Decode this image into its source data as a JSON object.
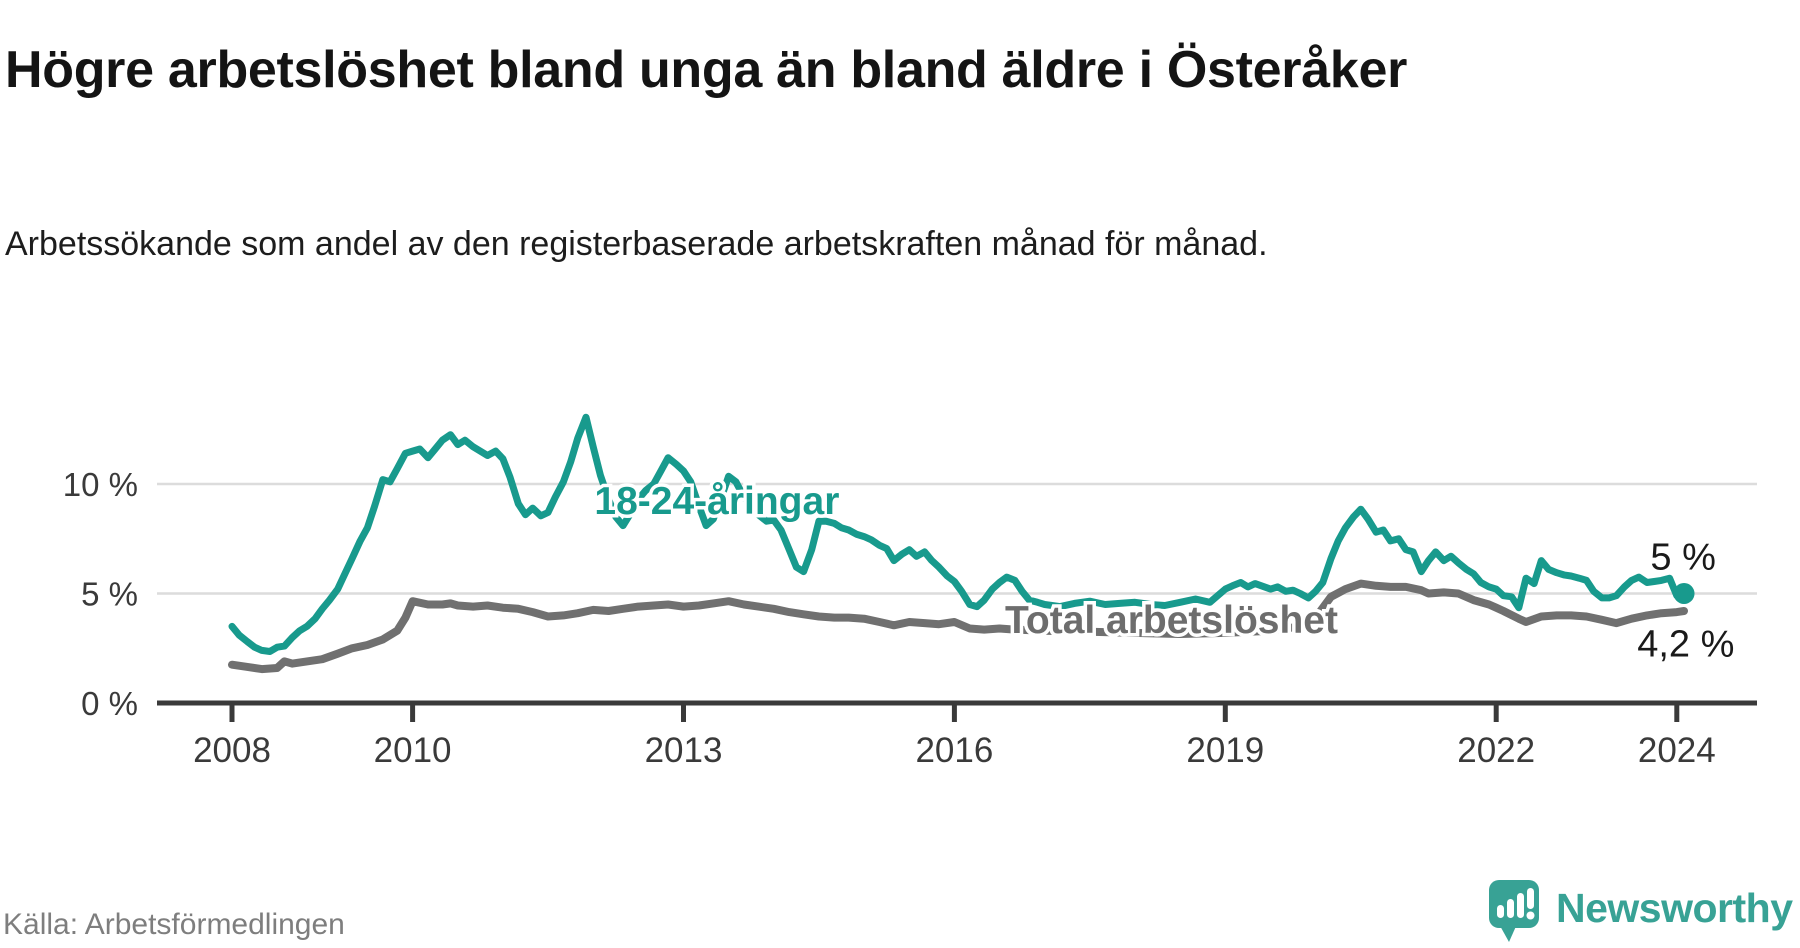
{
  "header": {
    "title": "Högre arbetslöshet bland unga än bland äldre i Österåker",
    "subtitle": "Arbetssökande som andel av den registerbaserade arbetskraften månad för månad."
  },
  "footer": {
    "source": "Källa: Arbetsförmedlingen",
    "brand": "Newsworthy",
    "brand_color": "#38a295",
    "logo_icon": "speech-bubble-bar-chart-exclamation"
  },
  "chart_data": {
    "type": "line",
    "title": "Högre arbetslöshet bland unga än bland äldre i Österåker",
    "subtitle": "Arbetssökande som andel av den registerbaserade arbetskraften månad för månad.",
    "unit": "%",
    "grid": true,
    "legend_position": "inline-series-labels",
    "x_axis": {
      "range": [
        2007.17,
        2024.89
      ],
      "ticks": [
        {
          "year": 2008,
          "label": "2008"
        },
        {
          "year": 2010,
          "label": "2010"
        },
        {
          "year": 2013,
          "label": "2013"
        },
        {
          "year": 2016,
          "label": "2016"
        },
        {
          "year": 2019,
          "label": "2019"
        },
        {
          "year": 2022,
          "label": "2022"
        },
        {
          "year": 2024,
          "label": "2024"
        }
      ]
    },
    "y_axis": {
      "range": [
        0,
        13.5
      ],
      "ticks": [
        {
          "value": 0,
          "label": "0 %"
        },
        {
          "value": 5,
          "label": "5 %"
        },
        {
          "value": 10,
          "label": "10 %"
        }
      ]
    },
    "series": [
      {
        "id": "total",
        "name": "Total arbetslöshet",
        "color": "#707070",
        "label_color": "#6d6d6d",
        "stroke_width": 8,
        "end_label": "4,2 %",
        "end_value": 4.2,
        "end_dot": false,
        "label_anchor": {
          "x": 2016.56,
          "y": 3.2,
          "align": "start"
        },
        "end_label_anchor": {
          "x": 2024.1,
          "y": 2.12,
          "align": "middle"
        },
        "points": [
          [
            2008.0,
            1.75
          ],
          [
            2008.17,
            1.65
          ],
          [
            2008.33,
            1.55
          ],
          [
            2008.5,
            1.6
          ],
          [
            2008.58,
            1.9
          ],
          [
            2008.67,
            1.8
          ],
          [
            2008.83,
            1.9
          ],
          [
            2009.0,
            2.0
          ],
          [
            2009.17,
            2.25
          ],
          [
            2009.33,
            2.5
          ],
          [
            2009.5,
            2.65
          ],
          [
            2009.67,
            2.9
          ],
          [
            2009.83,
            3.3
          ],
          [
            2009.92,
            3.9
          ],
          [
            2010.0,
            4.65
          ],
          [
            2010.17,
            4.5
          ],
          [
            2010.33,
            4.5
          ],
          [
            2010.42,
            4.55
          ],
          [
            2010.5,
            4.45
          ],
          [
            2010.67,
            4.4
          ],
          [
            2010.83,
            4.45
          ],
          [
            2011.0,
            4.35
          ],
          [
            2011.17,
            4.3
          ],
          [
            2011.33,
            4.15
          ],
          [
            2011.5,
            3.95
          ],
          [
            2011.67,
            4.0
          ],
          [
            2011.83,
            4.1
          ],
          [
            2012.0,
            4.25
          ],
          [
            2012.17,
            4.2
          ],
          [
            2012.33,
            4.3
          ],
          [
            2012.5,
            4.4
          ],
          [
            2012.67,
            4.45
          ],
          [
            2012.83,
            4.5
          ],
          [
            2013.0,
            4.4
          ],
          [
            2013.17,
            4.45
          ],
          [
            2013.33,
            4.55
          ],
          [
            2013.5,
            4.65
          ],
          [
            2013.67,
            4.5
          ],
          [
            2013.83,
            4.4
          ],
          [
            2014.0,
            4.3
          ],
          [
            2014.17,
            4.15
          ],
          [
            2014.33,
            4.05
          ],
          [
            2014.5,
            3.95
          ],
          [
            2014.67,
            3.9
          ],
          [
            2014.83,
            3.9
          ],
          [
            2015.0,
            3.85
          ],
          [
            2015.17,
            3.7
          ],
          [
            2015.33,
            3.55
          ],
          [
            2015.5,
            3.7
          ],
          [
            2015.67,
            3.65
          ],
          [
            2015.83,
            3.6
          ],
          [
            2016.0,
            3.7
          ],
          [
            2016.17,
            3.4
          ],
          [
            2016.33,
            3.35
          ],
          [
            2016.5,
            3.4
          ],
          [
            2016.67,
            3.35
          ],
          [
            2017.0,
            3.3
          ],
          [
            2017.5,
            3.25
          ],
          [
            2018.0,
            3.2
          ],
          [
            2018.5,
            3.15
          ],
          [
            2019.0,
            3.2
          ],
          [
            2019.5,
            3.3
          ],
          [
            2019.83,
            3.5
          ],
          [
            2020.0,
            3.9
          ],
          [
            2020.17,
            4.85
          ],
          [
            2020.33,
            5.2
          ],
          [
            2020.5,
            5.45
          ],
          [
            2020.67,
            5.35
          ],
          [
            2020.83,
            5.3
          ],
          [
            2021.0,
            5.3
          ],
          [
            2021.17,
            5.15
          ],
          [
            2021.25,
            5.0
          ],
          [
            2021.42,
            5.05
          ],
          [
            2021.58,
            5.0
          ],
          [
            2021.75,
            4.7
          ],
          [
            2021.92,
            4.5
          ],
          [
            2022.0,
            4.35
          ],
          [
            2022.08,
            4.2
          ],
          [
            2022.25,
            3.85
          ],
          [
            2022.33,
            3.7
          ],
          [
            2022.5,
            3.95
          ],
          [
            2022.67,
            4.0
          ],
          [
            2022.83,
            4.0
          ],
          [
            2023.0,
            3.95
          ],
          [
            2023.17,
            3.8
          ],
          [
            2023.33,
            3.65
          ],
          [
            2023.5,
            3.85
          ],
          [
            2023.67,
            4.0
          ],
          [
            2023.83,
            4.1
          ],
          [
            2024.0,
            4.15
          ],
          [
            2024.08,
            4.2
          ]
        ]
      },
      {
        "id": "youth",
        "name": "18-24-åringar",
        "color": "#189a8d",
        "label_color": "#189a8d",
        "stroke_width": 7,
        "end_label": "5 %",
        "end_value": 5.0,
        "end_dot": true,
        "label_anchor": {
          "x": 2013.37,
          "y": 8.63,
          "align": "middle"
        },
        "end_label_anchor": {
          "x": 2024.07,
          "y": 6.1,
          "align": "middle"
        },
        "points": [
          [
            2008.0,
            3.5
          ],
          [
            2008.08,
            3.1
          ],
          [
            2008.17,
            2.8
          ],
          [
            2008.25,
            2.55
          ],
          [
            2008.33,
            2.4
          ],
          [
            2008.42,
            2.35
          ],
          [
            2008.5,
            2.55
          ],
          [
            2008.58,
            2.6
          ],
          [
            2008.67,
            3.0
          ],
          [
            2008.75,
            3.3
          ],
          [
            2008.83,
            3.5
          ],
          [
            2008.92,
            3.85
          ],
          [
            2009.0,
            4.3
          ],
          [
            2009.08,
            4.7
          ],
          [
            2009.17,
            5.2
          ],
          [
            2009.25,
            5.9
          ],
          [
            2009.33,
            6.6
          ],
          [
            2009.42,
            7.4
          ],
          [
            2009.5,
            8.0
          ],
          [
            2009.58,
            9.0
          ],
          [
            2009.67,
            10.2
          ],
          [
            2009.75,
            10.1
          ],
          [
            2009.83,
            10.7
          ],
          [
            2009.92,
            11.4
          ],
          [
            2010.0,
            11.5
          ],
          [
            2010.08,
            11.6
          ],
          [
            2010.17,
            11.2
          ],
          [
            2010.25,
            11.6
          ],
          [
            2010.33,
            12.0
          ],
          [
            2010.42,
            12.25
          ],
          [
            2010.5,
            11.8
          ],
          [
            2010.58,
            12.0
          ],
          [
            2010.67,
            11.7
          ],
          [
            2010.75,
            11.5
          ],
          [
            2010.83,
            11.3
          ],
          [
            2010.92,
            11.5
          ],
          [
            2011.0,
            11.15
          ],
          [
            2011.08,
            10.3
          ],
          [
            2011.17,
            9.1
          ],
          [
            2011.25,
            8.6
          ],
          [
            2011.33,
            8.9
          ],
          [
            2011.42,
            8.55
          ],
          [
            2011.5,
            8.7
          ],
          [
            2011.58,
            9.4
          ],
          [
            2011.67,
            10.1
          ],
          [
            2011.75,
            11.0
          ],
          [
            2011.83,
            12.1
          ],
          [
            2011.92,
            13.05
          ],
          [
            2012.0,
            11.7
          ],
          [
            2012.08,
            10.4
          ],
          [
            2012.17,
            9.3
          ],
          [
            2012.25,
            8.5
          ],
          [
            2012.33,
            8.1
          ],
          [
            2012.42,
            8.7
          ],
          [
            2012.5,
            9.3
          ],
          [
            2012.58,
            9.7
          ],
          [
            2012.67,
            10.0
          ],
          [
            2012.75,
            10.6
          ],
          [
            2012.83,
            11.2
          ],
          [
            2012.92,
            10.9
          ],
          [
            2013.0,
            10.6
          ],
          [
            2013.08,
            10.1
          ],
          [
            2013.17,
            9.0
          ],
          [
            2013.25,
            8.1
          ],
          [
            2013.33,
            8.4
          ],
          [
            2013.42,
            9.4
          ],
          [
            2013.5,
            10.35
          ],
          [
            2013.58,
            10.1
          ],
          [
            2013.67,
            9.4
          ],
          [
            2013.75,
            9.0
          ],
          [
            2013.83,
            8.6
          ],
          [
            2013.92,
            8.3
          ],
          [
            2014.0,
            8.35
          ],
          [
            2014.08,
            7.9
          ],
          [
            2014.17,
            7.0
          ],
          [
            2014.25,
            6.2
          ],
          [
            2014.33,
            6.0
          ],
          [
            2014.42,
            7.0
          ],
          [
            2014.5,
            8.3
          ],
          [
            2014.58,
            8.3
          ],
          [
            2014.67,
            8.2
          ],
          [
            2014.75,
            8.0
          ],
          [
            2014.83,
            7.9
          ],
          [
            2014.92,
            7.7
          ],
          [
            2015.0,
            7.6
          ],
          [
            2015.08,
            7.45
          ],
          [
            2015.17,
            7.2
          ],
          [
            2015.25,
            7.05
          ],
          [
            2015.33,
            6.5
          ],
          [
            2015.42,
            6.8
          ],
          [
            2015.5,
            7.0
          ],
          [
            2015.58,
            6.7
          ],
          [
            2015.67,
            6.9
          ],
          [
            2015.75,
            6.5
          ],
          [
            2015.83,
            6.2
          ],
          [
            2015.92,
            5.8
          ],
          [
            2016.0,
            5.55
          ],
          [
            2016.08,
            5.1
          ],
          [
            2016.17,
            4.5
          ],
          [
            2016.25,
            4.4
          ],
          [
            2016.33,
            4.7
          ],
          [
            2016.42,
            5.2
          ],
          [
            2016.5,
            5.5
          ],
          [
            2016.58,
            5.75
          ],
          [
            2016.67,
            5.6
          ],
          [
            2016.75,
            5.1
          ],
          [
            2016.83,
            4.7
          ],
          [
            2016.92,
            4.6
          ],
          [
            2017.0,
            4.5
          ],
          [
            2017.17,
            4.4
          ],
          [
            2017.33,
            4.55
          ],
          [
            2017.5,
            4.65
          ],
          [
            2017.67,
            4.5
          ],
          [
            2017.83,
            4.55
          ],
          [
            2018.0,
            4.6
          ],
          [
            2018.17,
            4.5
          ],
          [
            2018.33,
            4.45
          ],
          [
            2018.5,
            4.6
          ],
          [
            2018.67,
            4.75
          ],
          [
            2018.83,
            4.6
          ],
          [
            2019.0,
            5.2
          ],
          [
            2019.08,
            5.35
          ],
          [
            2019.17,
            5.5
          ],
          [
            2019.25,
            5.3
          ],
          [
            2019.33,
            5.45
          ],
          [
            2019.5,
            5.2
          ],
          [
            2019.58,
            5.3
          ],
          [
            2019.67,
            5.1
          ],
          [
            2019.75,
            5.15
          ],
          [
            2019.83,
            5.0
          ],
          [
            2019.92,
            4.8
          ],
          [
            2020.0,
            5.1
          ],
          [
            2020.08,
            5.5
          ],
          [
            2020.17,
            6.6
          ],
          [
            2020.25,
            7.4
          ],
          [
            2020.33,
            8.0
          ],
          [
            2020.42,
            8.5
          ],
          [
            2020.5,
            8.85
          ],
          [
            2020.58,
            8.4
          ],
          [
            2020.67,
            7.8
          ],
          [
            2020.75,
            7.9
          ],
          [
            2020.83,
            7.4
          ],
          [
            2020.92,
            7.5
          ],
          [
            2021.0,
            7.0
          ],
          [
            2021.08,
            6.9
          ],
          [
            2021.17,
            6.0
          ],
          [
            2021.25,
            6.5
          ],
          [
            2021.33,
            6.9
          ],
          [
            2021.42,
            6.5
          ],
          [
            2021.5,
            6.7
          ],
          [
            2021.58,
            6.4
          ],
          [
            2021.67,
            6.1
          ],
          [
            2021.75,
            5.9
          ],
          [
            2021.83,
            5.5
          ],
          [
            2021.92,
            5.3
          ],
          [
            2022.0,
            5.2
          ],
          [
            2022.08,
            4.9
          ],
          [
            2022.17,
            4.85
          ],
          [
            2022.25,
            4.35
          ],
          [
            2022.33,
            5.7
          ],
          [
            2022.42,
            5.45
          ],
          [
            2022.5,
            6.5
          ],
          [
            2022.58,
            6.1
          ],
          [
            2022.67,
            5.95
          ],
          [
            2022.75,
            5.85
          ],
          [
            2022.83,
            5.8
          ],
          [
            2022.92,
            5.7
          ],
          [
            2023.0,
            5.6
          ],
          [
            2023.08,
            5.1
          ],
          [
            2023.17,
            4.8
          ],
          [
            2023.25,
            4.8
          ],
          [
            2023.33,
            4.9
          ],
          [
            2023.42,
            5.3
          ],
          [
            2023.5,
            5.6
          ],
          [
            2023.58,
            5.75
          ],
          [
            2023.67,
            5.5
          ],
          [
            2023.75,
            5.55
          ],
          [
            2023.83,
            5.6
          ],
          [
            2023.92,
            5.7
          ],
          [
            2024.0,
            4.9
          ],
          [
            2024.08,
            5.0
          ]
        ]
      }
    ],
    "style": {
      "grid_color": "#dcdcdc",
      "axis_color": "#3a3a3a",
      "tick_label_color": "#3a3a3a",
      "end_label_color": "#1a1a1a"
    }
  }
}
